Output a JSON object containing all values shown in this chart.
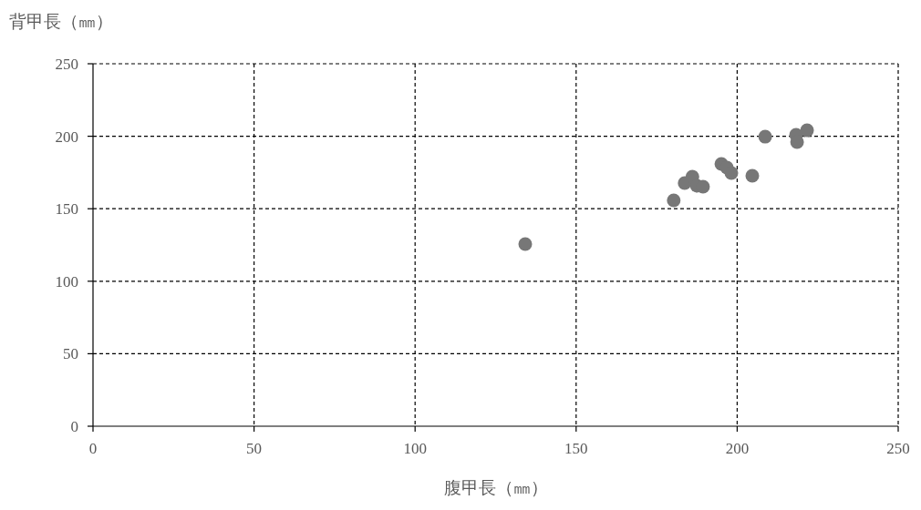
{
  "chart_data": {
    "type": "scatter",
    "xlabel": "腹甲長（㎜）",
    "ylabel": "背甲長（㎜）",
    "x": [
      134.2,
      180.3,
      183.7,
      186.1,
      187.5,
      189.4,
      195.1,
      196.8,
      198.2,
      204.7,
      208.7,
      218.3,
      218.6,
      221.7
    ],
    "series": [
      {
        "color": "#777777",
        "values": [
          125.6,
          155.8,
          167.7,
          172.1,
          165.8,
          165.2,
          180.9,
          178.4,
          174.6,
          172.7,
          199.7,
          201.0,
          196.0,
          204.1
        ]
      }
    ],
    "xlim": [
      0,
      250
    ],
    "ylim": [
      0,
      250
    ],
    "xticks": [
      0,
      50,
      100,
      150,
      200,
      250
    ],
    "yticks": [
      0,
      50,
      100,
      150,
      200,
      250
    ],
    "grid": true,
    "marker": "circle",
    "line_style": "dashed"
  }
}
